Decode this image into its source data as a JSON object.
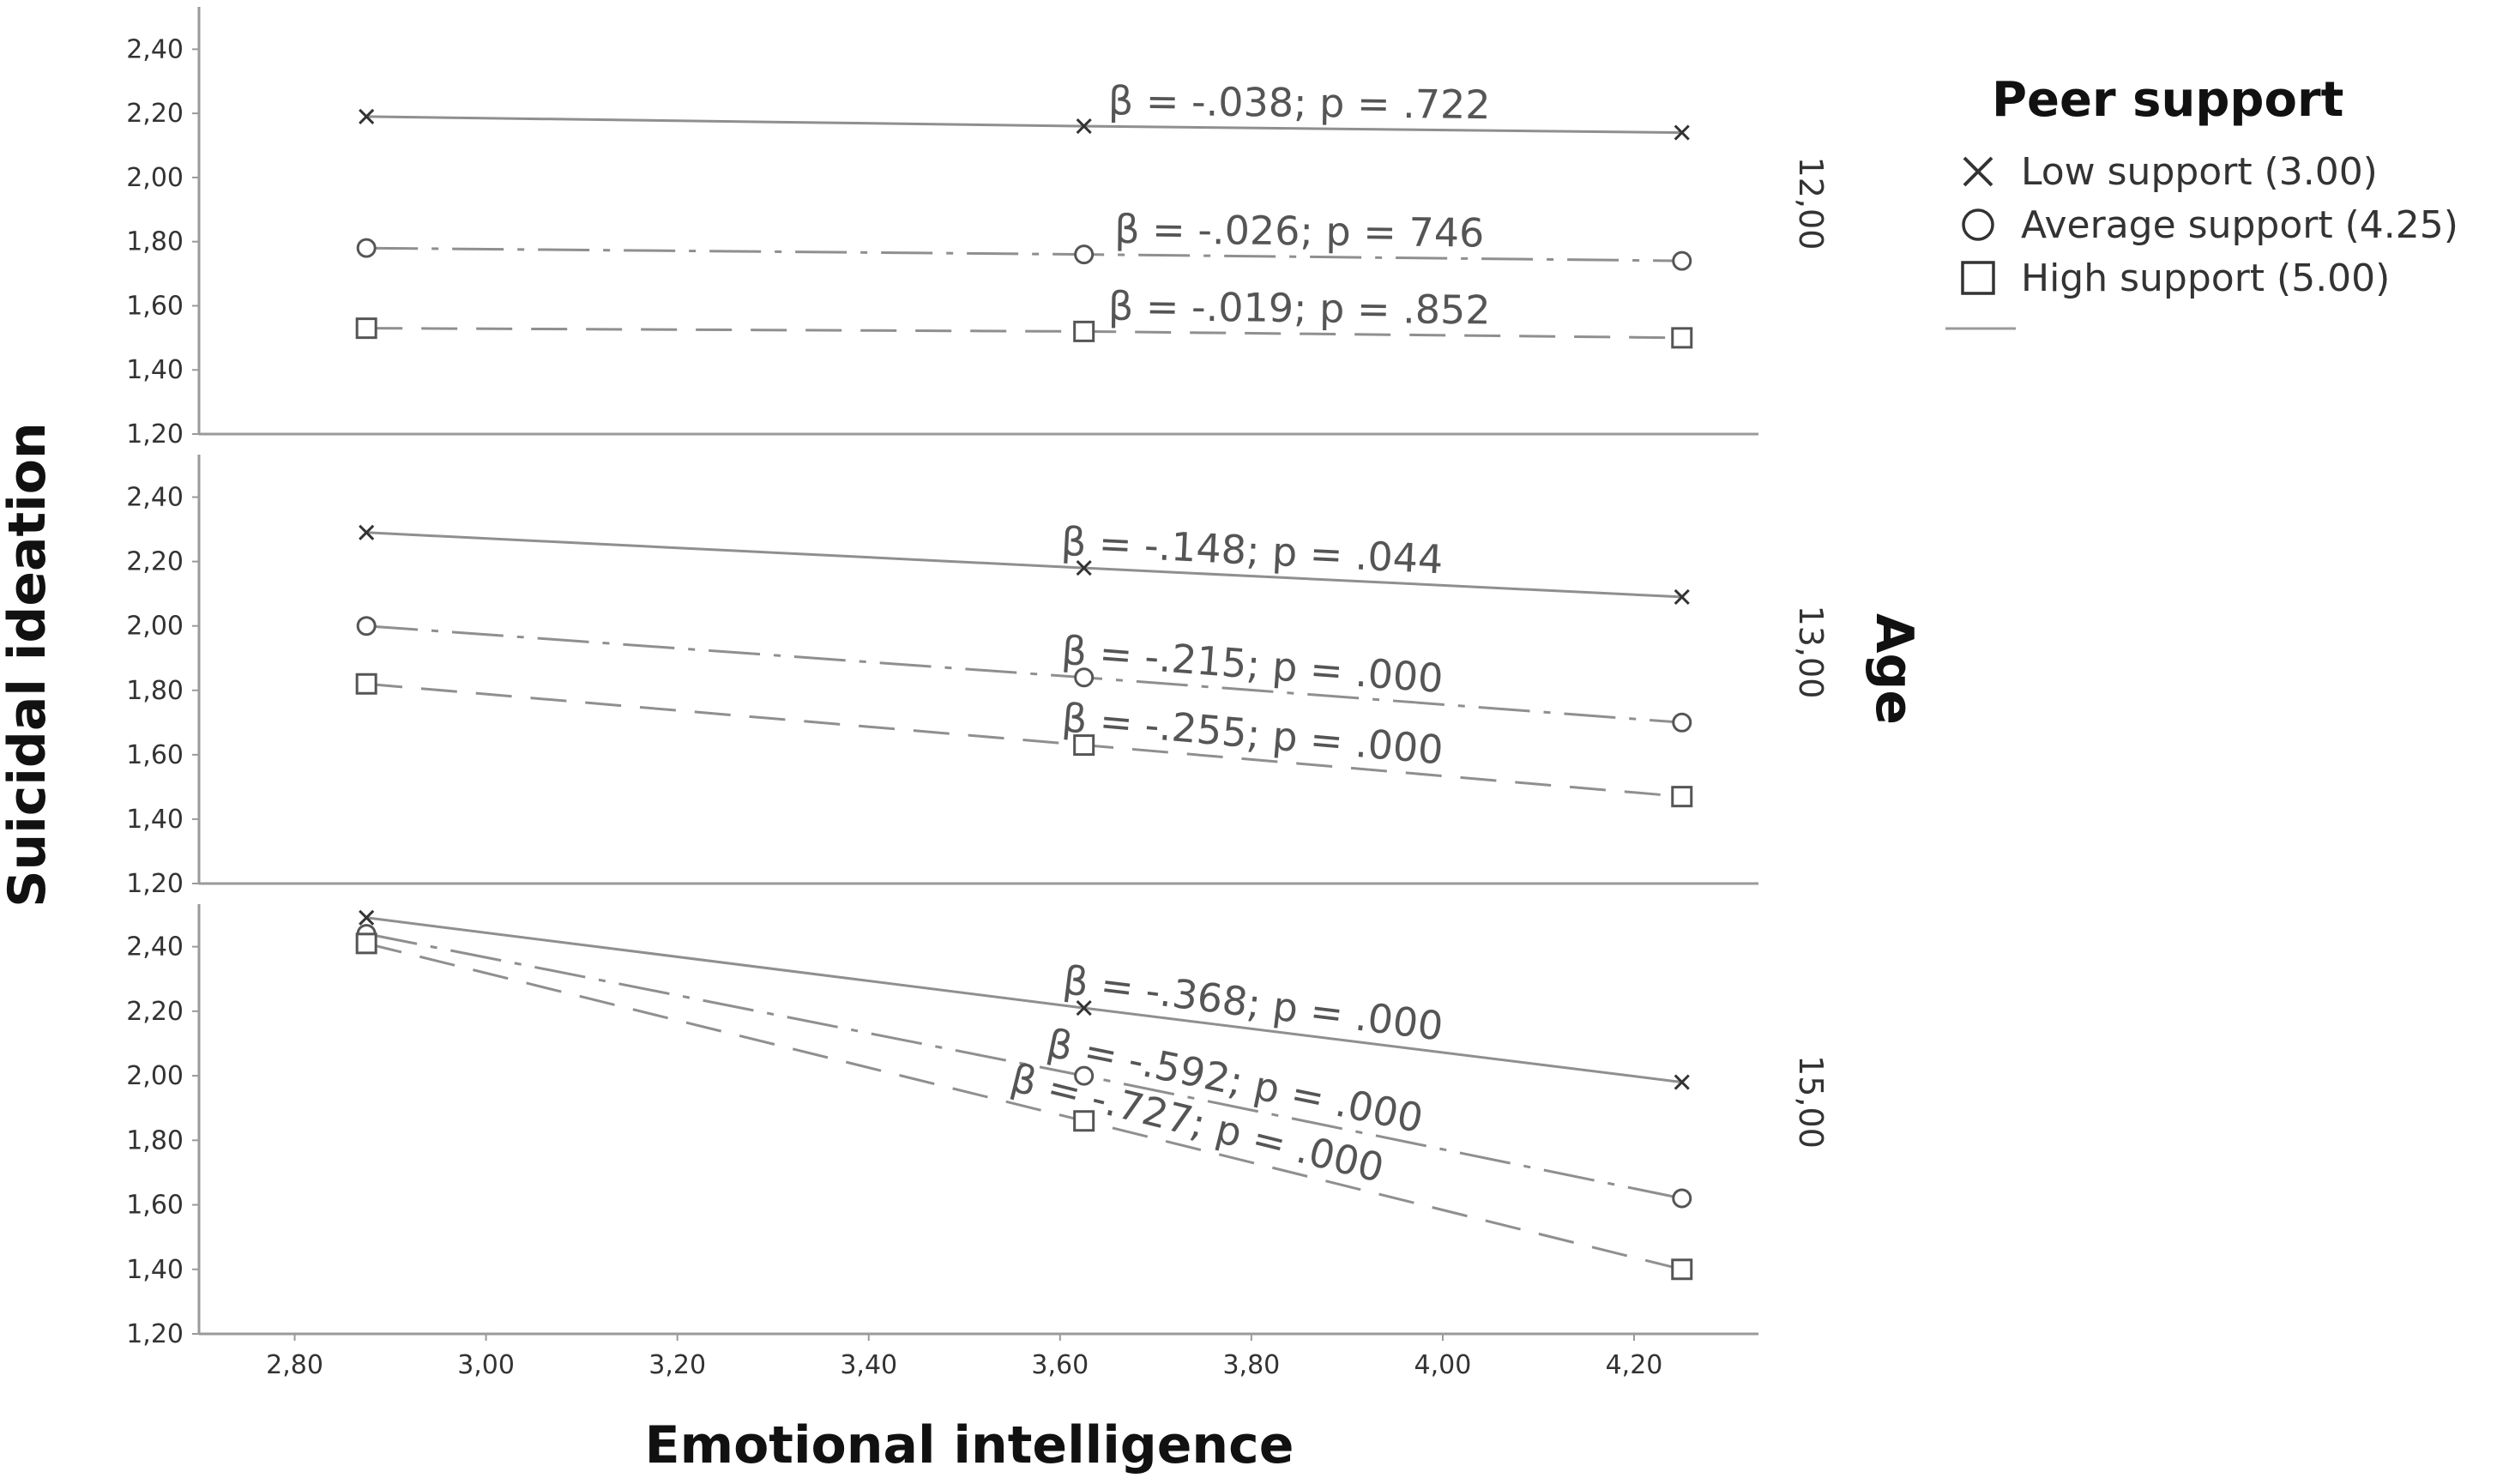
{
  "chart_data": {
    "type": "line",
    "xlabel": "Emotional intelligence",
    "ylabel": "Suicidal ideation",
    "facet_label": "Age",
    "legend_title": "Peer support",
    "legend_position": "right",
    "xlim": [
      2.7,
      4.33
    ],
    "ylim": [
      1.2,
      2.5
    ],
    "x_ticks": [
      "2,80",
      "3,00",
      "3,20",
      "3,40",
      "3,60",
      "3,80",
      "4,00",
      "4,20"
    ],
    "x_tick_values": [
      2.8,
      3.0,
      3.2,
      3.4,
      3.6,
      3.8,
      4.0,
      4.2
    ],
    "y_ticks": [
      "1,20",
      "1,40",
      "1,60",
      "1,80",
      "2,00",
      "2,20",
      "2,40"
    ],
    "y_tick_values": [
      1.2,
      1.4,
      1.6,
      1.8,
      2.0,
      2.2,
      2.4
    ],
    "x": [
      2.875,
      3.625,
      4.25
    ],
    "series_legend": [
      {
        "name": "Low support (3.00)",
        "marker": "x",
        "line": "solid"
      },
      {
        "name": "Average support (4.25)",
        "marker": "circle",
        "line": "dashdot"
      },
      {
        "name": "High support (5.00)",
        "marker": "square",
        "line": "dashed"
      }
    ],
    "panels": [
      {
        "label": "12,00",
        "series": [
          {
            "values": [
              2.19,
              2.16,
              2.14
            ],
            "annotation": "β = -.038; p = .722"
          },
          {
            "values": [
              1.78,
              1.76,
              1.74
            ],
            "annotation": "β = -.026; p = 746"
          },
          {
            "values": [
              1.53,
              1.52,
              1.5
            ],
            "annotation": "β = -.019; p = .852"
          }
        ]
      },
      {
        "label": "13,00",
        "series": [
          {
            "values": [
              2.29,
              2.18,
              2.09
            ],
            "annotation": "β = -.148; p = .044"
          },
          {
            "values": [
              2.0,
              1.84,
              1.7
            ],
            "annotation": "β = -.215; p = .000"
          },
          {
            "values": [
              1.82,
              1.63,
              1.47
            ],
            "annotation": "β = -.255; p = .000"
          }
        ]
      },
      {
        "label": "15,00",
        "series": [
          {
            "values": [
              2.49,
              2.21,
              1.98
            ],
            "annotation": "β = -.368; p = .000"
          },
          {
            "values": [
              2.44,
              2.0,
              1.62
            ],
            "annotation": "β = -.592; p = .000"
          },
          {
            "values": [
              2.41,
              1.86,
              1.4
            ],
            "annotation": "β = -.727; p = .000"
          }
        ]
      }
    ]
  }
}
